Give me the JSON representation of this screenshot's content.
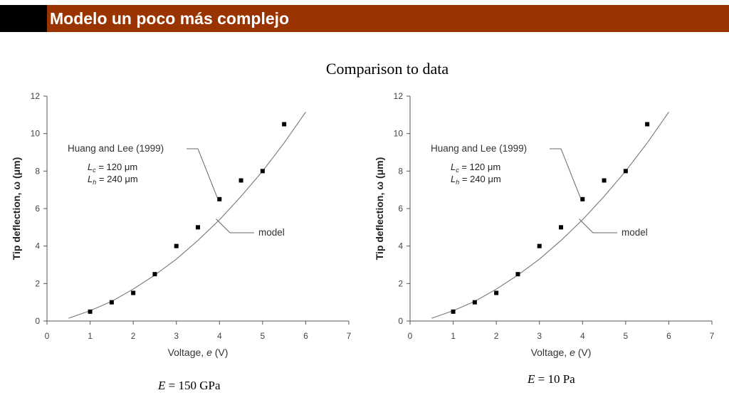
{
  "header": {
    "title": "Modelo un poco más complejo"
  },
  "subtitle": "Comparison to data",
  "captions": [
    {
      "symbol": "E",
      "text": " = 150 GPa"
    },
    {
      "symbol": "E",
      "text": " = 10 Pa"
    }
  ],
  "chart_data": [
    {
      "type": "scatter",
      "title": "",
      "xlabel_text": "Voltage, ",
      "xlabel_symbol": "e",
      "xlabel_unit": " (V)",
      "ylabel": "Tip deflection, ω (μm)",
      "xlim": [
        0,
        7
      ],
      "ylim": [
        0,
        12
      ],
      "x_ticks": [
        "0",
        "1",
        "2",
        "3",
        "4",
        "5",
        "6",
        "7"
      ],
      "y_ticks": [
        "0",
        "2",
        "4",
        "6",
        "8",
        "10",
        "12"
      ],
      "grid": false,
      "series": [
        {
          "name": "Huang and Lee (1999)",
          "kind": "points",
          "x": [
            1.0,
            1.5,
            2.0,
            2.5,
            3.0,
            3.5,
            4.0,
            4.5,
            5.0,
            5.5
          ],
          "y": [
            0.5,
            1.0,
            1.5,
            2.5,
            4.0,
            5.0,
            6.5,
            7.5,
            8.0,
            10.5
          ]
        },
        {
          "name": "model",
          "kind": "line",
          "x": [
            0.5,
            1.0,
            1.5,
            2.0,
            2.5,
            3.0,
            3.5,
            4.0,
            4.5,
            5.0,
            5.5,
            6.0
          ],
          "y": [
            0.15,
            0.55,
            1.05,
            1.7,
            2.45,
            3.3,
            4.3,
            5.4,
            6.65,
            8.0,
            9.5,
            11.15
          ]
        }
      ],
      "annotations": {
        "lc_symbol": "L",
        "lc_sub": "c",
        "lc_text": " = 120 μm",
        "lh_symbol": "L",
        "lh_sub": "h",
        "lh_text": " = 240 μm"
      }
    },
    {
      "type": "scatter",
      "title": "",
      "xlabel_text": "Voltage, ",
      "xlabel_symbol": "e",
      "xlabel_unit": " (V)",
      "ylabel": "Tip deflection, ω (μm)",
      "xlim": [
        0,
        7
      ],
      "ylim": [
        0,
        12
      ],
      "x_ticks": [
        "0",
        "1",
        "2",
        "3",
        "4",
        "5",
        "6",
        "7"
      ],
      "y_ticks": [
        "0",
        "2",
        "4",
        "6",
        "8",
        "10",
        "12"
      ],
      "grid": false,
      "series": [
        {
          "name": "Huang and Lee (1999)",
          "kind": "points",
          "x": [
            1.0,
            1.5,
            2.0,
            2.5,
            3.0,
            3.5,
            4.0,
            4.5,
            5.0,
            5.5
          ],
          "y": [
            0.5,
            1.0,
            1.5,
            2.5,
            4.0,
            5.0,
            6.5,
            7.5,
            8.0,
            10.5
          ]
        },
        {
          "name": "model",
          "kind": "line",
          "x": [
            0.5,
            1.0,
            1.5,
            2.0,
            2.5,
            3.0,
            3.5,
            4.0,
            4.5,
            5.0,
            5.5,
            6.0
          ],
          "y": [
            0.15,
            0.55,
            1.05,
            1.7,
            2.45,
            3.3,
            4.3,
            5.4,
            6.65,
            8.0,
            9.5,
            11.15
          ]
        }
      ],
      "annotations": {
        "lc_symbol": "L",
        "lc_sub": "c",
        "lc_text": " = 120 μm",
        "lh_symbol": "L",
        "lh_sub": "h",
        "lh_text": " = 240 μm"
      }
    }
  ]
}
